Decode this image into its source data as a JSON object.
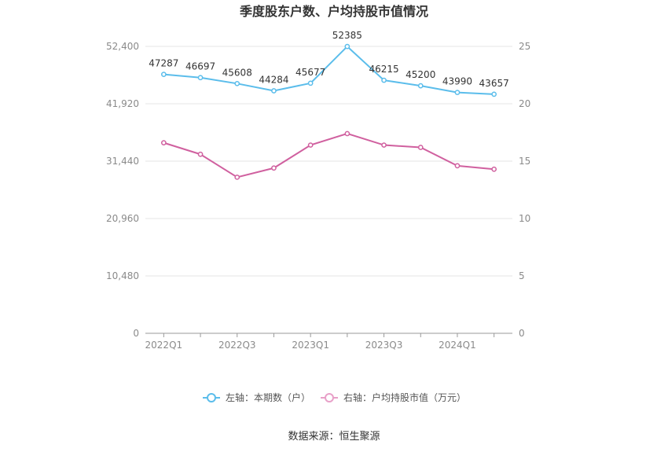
{
  "chart_data": {
    "type": "line",
    "title": "季度股东户数、户均持股市值情况",
    "categories": [
      "2022Q1",
      "2022Q2",
      "2022Q3",
      "2022Q4",
      "2023Q1",
      "2023Q2",
      "2023Q3",
      "2023Q4",
      "2024Q1",
      "2024Q2"
    ],
    "x_tick_labels": [
      "2022Q1",
      "2022Q3",
      "2023Q1",
      "2023Q3",
      "2024Q1"
    ],
    "left_axis": {
      "min": 0,
      "max": 52400,
      "ticks": [
        "0",
        "10,480",
        "20,960",
        "31,440",
        "41,920",
        "52,400"
      ]
    },
    "right_axis": {
      "min": 0,
      "max": 25,
      "ticks": [
        "0",
        "5",
        "10",
        "15",
        "20",
        "25"
      ]
    },
    "grid": true,
    "legend_position": "bottom",
    "series": [
      {
        "name": "左轴：本期数（户）",
        "axis": "left",
        "color": "#5bbdeb",
        "values": [
          47287,
          46697,
          45608,
          44284,
          45677,
          52385,
          46215,
          45200,
          43990,
          43657
        ],
        "labels": [
          "47287",
          "46697",
          "45608",
          "44284",
          "45677",
          "52385",
          "46215",
          "45200",
          "43990",
          "43657"
        ]
      },
      {
        "name": "右轴：户均持股市值（万元）",
        "axis": "right",
        "color": "#d0609f",
        "legend_color": "#e8a0c8",
        "values": [
          16.6,
          15.6,
          13.6,
          14.4,
          16.4,
          17.4,
          16.4,
          16.2,
          14.6,
          14.3
        ]
      }
    ],
    "source": "数据来源：恒生聚源"
  }
}
